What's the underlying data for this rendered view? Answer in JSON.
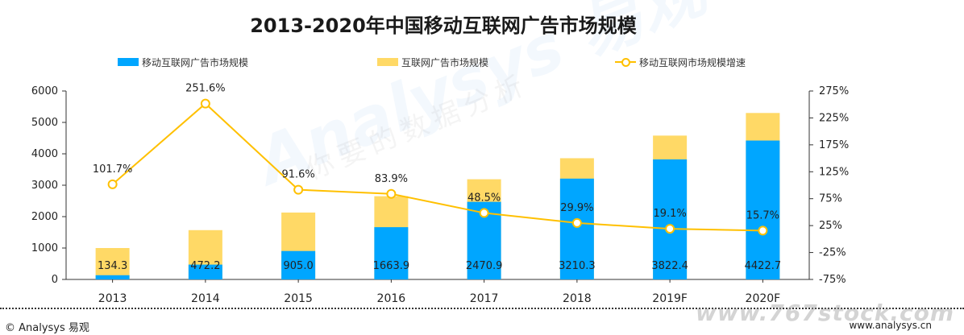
{
  "chart_data": {
    "type": "bar",
    "title": "2013-2020年中国移动互联网广告市场规模",
    "categories": [
      "2013",
      "2014",
      "2015",
      "2016",
      "2017",
      "2018",
      "2019F",
      "2020F"
    ],
    "series": [
      {
        "name": "移动互联网广告市场规模",
        "type": "bar",
        "color": "#00a6ff",
        "values": [
          134.3,
          472.2,
          905.0,
          1663.9,
          2470.9,
          3210.3,
          3822.4,
          4422.7
        ],
        "labels": [
          "134.3",
          "472.2",
          "905.0",
          "1663.9",
          "2470.9",
          "3210.3",
          "3822.4",
          "4422.7"
        ]
      },
      {
        "name": "互联网广告市场规模",
        "type": "bar",
        "color": "#ffd966",
        "values": [
          1000,
          1570,
          2130,
          2650,
          3190,
          3860,
          4580,
          5300
        ]
      },
      {
        "name": "移动互联网市场规模增速",
        "type": "line",
        "color": "#ffc000",
        "axis": "right",
        "values": [
          101.7,
          251.6,
          91.6,
          83.9,
          48.5,
          29.9,
          19.1,
          15.7
        ],
        "labels": [
          "101.7%",
          "251.6%",
          "91.6%",
          "83.9%",
          "48.5%",
          "29.9%",
          "19.1%",
          "15.7%"
        ]
      }
    ],
    "y_left": {
      "ylim": [
        0,
        6000
      ],
      "ticks": [
        "0",
        "1000",
        "2000",
        "3000",
        "4000",
        "5000",
        "6000"
      ]
    },
    "y_right": {
      "ylim": [
        -75,
        275
      ],
      "ticks": [
        "-75%",
        "-25%",
        "25%",
        "75%",
        "125%",
        "175%",
        "225%",
        "275%"
      ]
    },
    "legend_position": "top",
    "grid": false
  },
  "footer": {
    "left": "© Analysys 易观",
    "right": "www.analysys.cn",
    "site_mark": "www.767stock.com"
  },
  "watermark": {
    "text": "Analysys 易观",
    "sub": "你要的数据分析"
  }
}
